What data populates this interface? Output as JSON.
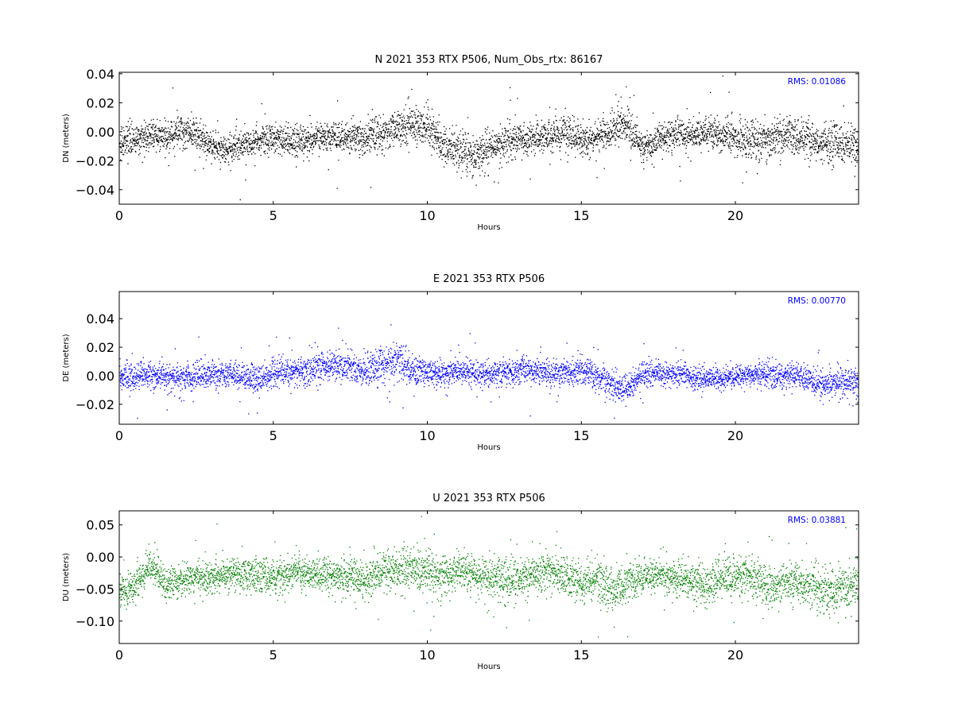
{
  "chart_data": [
    {
      "type": "scatter",
      "title": "N 2021 353 RTX  P506, Num_Obs_rtx: 86167",
      "xlabel": "Hours",
      "ylabel": "DN (meters)",
      "xlim": [
        0,
        24
      ],
      "ylim": [
        -0.05,
        0.041
      ],
      "xticks": [
        0,
        5,
        10,
        15,
        20
      ],
      "yticks": [
        -0.04,
        -0.02,
        0.0,
        0.02,
        0.04
      ],
      "ytick_labels": [
        "−0.04",
        "−0.02",
        "0.00",
        "0.02",
        "0.04"
      ],
      "annotation": "RMS:  0.01086",
      "color": "#000000",
      "series": [
        {
          "x": [
            0,
            0.5,
            1,
            1.5,
            2,
            2.5,
            3,
            3.5,
            4,
            4.5,
            5,
            5.5,
            6,
            6.5,
            7,
            7.5,
            8,
            8.5,
            9,
            9.5,
            10,
            10.5,
            11,
            11.5,
            12,
            12.5,
            13,
            13.5,
            14,
            14.5,
            15,
            15.5,
            16,
            16.5,
            17,
            17.5,
            18,
            18.5,
            19,
            19.5,
            20,
            20.5,
            21,
            21.5,
            22,
            22.5,
            23,
            23.5,
            24
          ],
          "y": [
            -0.008,
            -0.006,
            -0.002,
            -0.004,
            0.001,
            -0.002,
            -0.01,
            -0.012,
            -0.008,
            -0.006,
            -0.004,
            -0.006,
            -0.006,
            -0.004,
            -0.002,
            -0.004,
            -0.004,
            0.0,
            0.002,
            0.006,
            0.004,
            -0.01,
            -0.012,
            -0.016,
            -0.01,
            -0.006,
            -0.006,
            -0.004,
            -0.002,
            0.0,
            -0.006,
            -0.004,
            0.002,
            0.004,
            -0.012,
            -0.004,
            -0.002,
            -0.002,
            0.0,
            -0.002,
            -0.004,
            -0.004,
            -0.006,
            -0.004,
            -0.004,
            -0.006,
            -0.008,
            -0.008,
            -0.01
          ],
          "spread": [
            0.009,
            0.009,
            0.009,
            0.009,
            0.01,
            0.01,
            0.009,
            0.009,
            0.009,
            0.009,
            0.009,
            0.009,
            0.009,
            0.009,
            0.01,
            0.01,
            0.01,
            0.011,
            0.012,
            0.013,
            0.012,
            0.011,
            0.012,
            0.012,
            0.011,
            0.01,
            0.01,
            0.01,
            0.01,
            0.01,
            0.01,
            0.01,
            0.011,
            0.012,
            0.009,
            0.009,
            0.009,
            0.009,
            0.01,
            0.011,
            0.011,
            0.012,
            0.012,
            0.012,
            0.011,
            0.011,
            0.011,
            0.011,
            0.011
          ]
        }
      ]
    },
    {
      "type": "scatter",
      "title": "E 2021 353 RTX  P506",
      "xlabel": "Hours",
      "ylabel": "DE (meters)",
      "xlim": [
        0,
        24
      ],
      "ylim": [
        -0.034,
        0.059
      ],
      "xticks": [
        0,
        5,
        10,
        15,
        20
      ],
      "yticks": [
        -0.02,
        0.0,
        0.02,
        0.04
      ],
      "ytick_labels": [
        "−0.02",
        "0.00",
        "0.02",
        "0.04"
      ],
      "annotation": "RMS:  0.00770",
      "color": "#0000ff",
      "series": [
        {
          "x": [
            0,
            0.5,
            1,
            1.5,
            2,
            2.5,
            3,
            3.5,
            4,
            4.5,
            5,
            5.5,
            6,
            6.5,
            7,
            7.5,
            8,
            8.5,
            9,
            9.5,
            10,
            10.5,
            11,
            11.5,
            12,
            12.5,
            13,
            13.5,
            14,
            14.5,
            15,
            15.5,
            16,
            16.5,
            17,
            17.5,
            18,
            18.5,
            19,
            19.5,
            20,
            20.5,
            21,
            21.5,
            22,
            22.5,
            23,
            23.5,
            24
          ],
          "y": [
            -0.001,
            0.0,
            0.001,
            0.0,
            -0.001,
            0.0,
            0.001,
            0.0,
            0.0,
            -0.004,
            0.002,
            0.003,
            0.004,
            0.006,
            0.008,
            0.006,
            0.004,
            0.008,
            0.012,
            0.004,
            0.002,
            0.002,
            0.004,
            0.003,
            0.002,
            0.002,
            0.004,
            0.004,
            0.002,
            0.003,
            0.004,
            0.0,
            -0.006,
            -0.008,
            0.002,
            0.002,
            0.001,
            0.0,
            -0.002,
            -0.002,
            0.0,
            0.0,
            0.002,
            0.0,
            0.0,
            -0.004,
            -0.006,
            -0.004,
            -0.005
          ],
          "spread": [
            0.009,
            0.009,
            0.008,
            0.008,
            0.008,
            0.008,
            0.008,
            0.008,
            0.008,
            0.009,
            0.009,
            0.009,
            0.009,
            0.01,
            0.01,
            0.01,
            0.01,
            0.011,
            0.012,
            0.01,
            0.008,
            0.008,
            0.008,
            0.008,
            0.008,
            0.008,
            0.008,
            0.008,
            0.008,
            0.008,
            0.009,
            0.009,
            0.009,
            0.009,
            0.008,
            0.007,
            0.007,
            0.007,
            0.007,
            0.007,
            0.007,
            0.007,
            0.008,
            0.008,
            0.008,
            0.009,
            0.009,
            0.009,
            0.009
          ]
        }
      ]
    },
    {
      "type": "scatter",
      "title": "U 2021 353 RTX  P506",
      "xlabel": "Hours",
      "ylabel": "DU (meters)",
      "xlim": [
        0,
        24
      ],
      "ylim": [
        -0.135,
        0.072
      ],
      "xticks": [
        0,
        5,
        10,
        15,
        20
      ],
      "yticks": [
        -0.1,
        -0.05,
        0.0,
        0.05
      ],
      "ytick_labels": [
        "−0.10",
        "−0.05",
        "0.00",
        "0.05"
      ],
      "annotation": "RMS:  0.03881",
      "color": "#008000",
      "series": [
        {
          "x": [
            0,
            0.5,
            1,
            1.5,
            2,
            2.5,
            3,
            3.5,
            4,
            4.5,
            5,
            5.5,
            6,
            6.5,
            7,
            7.5,
            8,
            8.5,
            9,
            9.5,
            10,
            10.5,
            11,
            11.5,
            12,
            12.5,
            13,
            13.5,
            14,
            14.5,
            15,
            15.5,
            16,
            16.5,
            17,
            17.5,
            18,
            18.5,
            19,
            19.5,
            20,
            20.5,
            21,
            21.5,
            22,
            22.5,
            23,
            23.5,
            24
          ],
          "y": [
            -0.055,
            -0.045,
            -0.01,
            -0.04,
            -0.04,
            -0.03,
            -0.03,
            -0.03,
            -0.025,
            -0.03,
            -0.03,
            -0.025,
            -0.025,
            -0.025,
            -0.03,
            -0.03,
            -0.035,
            -0.02,
            -0.02,
            -0.015,
            -0.025,
            -0.03,
            -0.02,
            -0.025,
            -0.03,
            -0.03,
            -0.035,
            -0.025,
            -0.02,
            -0.03,
            -0.04,
            -0.035,
            -0.055,
            -0.04,
            -0.03,
            -0.025,
            -0.03,
            -0.035,
            -0.045,
            -0.03,
            -0.03,
            -0.03,
            -0.045,
            -0.04,
            -0.04,
            -0.045,
            -0.055,
            -0.045,
            -0.045
          ],
          "spread": [
            0.025,
            0.025,
            0.02,
            0.022,
            0.022,
            0.022,
            0.022,
            0.023,
            0.024,
            0.025,
            0.024,
            0.023,
            0.022,
            0.022,
            0.024,
            0.025,
            0.026,
            0.027,
            0.028,
            0.03,
            0.03,
            0.028,
            0.026,
            0.027,
            0.028,
            0.028,
            0.028,
            0.028,
            0.026,
            0.026,
            0.028,
            0.028,
            0.03,
            0.028,
            0.025,
            0.024,
            0.024,
            0.025,
            0.026,
            0.028,
            0.03,
            0.03,
            0.028,
            0.028,
            0.028,
            0.03,
            0.032,
            0.03,
            0.03
          ]
        }
      ]
    }
  ]
}
